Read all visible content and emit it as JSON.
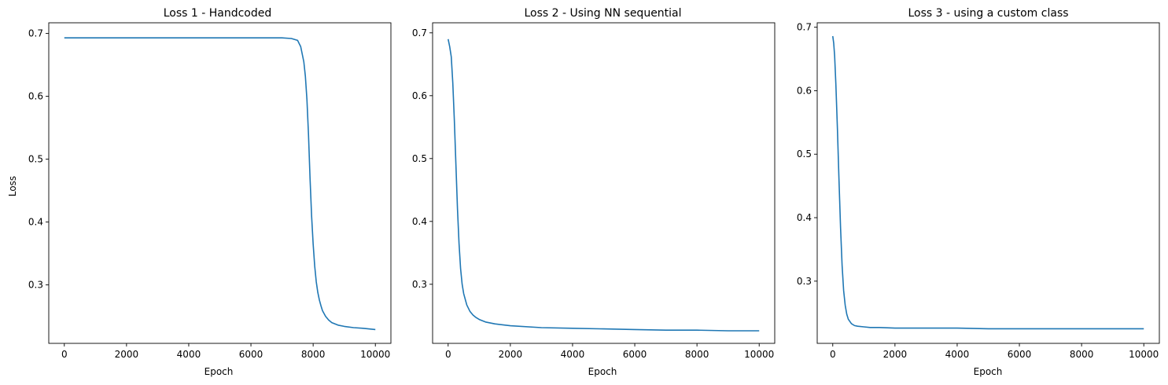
{
  "figure": {
    "line_color": "#1f77b4",
    "background": "#ffffff"
  },
  "chart_data": [
    {
      "type": "line",
      "title": "Loss 1 - Handcoded",
      "xlabel": "Epoch",
      "ylabel": "Loss",
      "xlim": [
        -500,
        10500
      ],
      "ylim": [
        0.207,
        0.717
      ],
      "xticks": [
        0,
        2000,
        4000,
        6000,
        8000,
        10000
      ],
      "yticks": [
        0.3,
        0.4,
        0.5,
        0.6,
        0.7
      ],
      "grid": false,
      "series": [
        {
          "x": [
            0,
            1000,
            2000,
            3000,
            4000,
            5000,
            6000,
            7000,
            7300,
            7500,
            7600,
            7700,
            7750,
            7800,
            7850,
            7900,
            7950,
            8000,
            8050,
            8100,
            8150,
            8200,
            8250,
            8300,
            8400,
            8500,
            8600,
            8800,
            9000,
            9300,
            9600,
            10000
          ],
          "y": [
            0.693,
            0.693,
            0.693,
            0.693,
            0.693,
            0.693,
            0.693,
            0.693,
            0.692,
            0.689,
            0.679,
            0.655,
            0.632,
            0.595,
            0.54,
            0.47,
            0.41,
            0.365,
            0.33,
            0.305,
            0.288,
            0.276,
            0.267,
            0.259,
            0.25,
            0.244,
            0.24,
            0.236,
            0.234,
            0.232,
            0.231,
            0.229
          ]
        }
      ]
    },
    {
      "type": "line",
      "title": "Loss 2 - Using NN sequential",
      "xlabel": "Epoch",
      "ylabel": "",
      "xlim": [
        -500,
        10500
      ],
      "ylim": [
        0.206,
        0.716
      ],
      "xticks": [
        0,
        2000,
        4000,
        6000,
        8000,
        10000
      ],
      "yticks": [
        0.3,
        0.4,
        0.5,
        0.6,
        0.7
      ],
      "grid": false,
      "series": [
        {
          "x": [
            0,
            50,
            100,
            150,
            200,
            250,
            300,
            350,
            400,
            450,
            500,
            600,
            700,
            800,
            900,
            1000,
            1200,
            1500,
            2000,
            3000,
            4000,
            5000,
            6000,
            7000,
            8000,
            9000,
            10000
          ],
          "y": [
            0.69,
            0.678,
            0.662,
            0.62,
            0.56,
            0.49,
            0.42,
            0.365,
            0.325,
            0.3,
            0.285,
            0.267,
            0.257,
            0.251,
            0.247,
            0.244,
            0.24,
            0.237,
            0.234,
            0.231,
            0.23,
            0.229,
            0.228,
            0.227,
            0.227,
            0.226,
            0.226
          ]
        }
      ]
    },
    {
      "type": "line",
      "title": "Loss 3 - using a custom class",
      "xlabel": "Epoch",
      "ylabel": "",
      "xlim": [
        -500,
        10500
      ],
      "ylim": [
        0.202,
        0.707
      ],
      "xticks": [
        0,
        2000,
        4000,
        6000,
        8000,
        10000
      ],
      "yticks": [
        0.3,
        0.4,
        0.5,
        0.6,
        0.7
      ],
      "grid": false,
      "series": [
        {
          "x": [
            0,
            30,
            60,
            100,
            150,
            200,
            250,
            300,
            350,
            400,
            450,
            500,
            600,
            700,
            800,
            1000,
            1200,
            1500,
            2000,
            3000,
            4000,
            5000,
            6000,
            7000,
            8000,
            9000,
            10000
          ],
          "y": [
            0.686,
            0.675,
            0.655,
            0.61,
            0.54,
            0.46,
            0.385,
            0.325,
            0.285,
            0.262,
            0.248,
            0.24,
            0.233,
            0.23,
            0.229,
            0.228,
            0.227,
            0.227,
            0.226,
            0.226,
            0.226,
            0.225,
            0.225,
            0.225,
            0.225,
            0.225,
            0.225
          ]
        }
      ]
    }
  ]
}
